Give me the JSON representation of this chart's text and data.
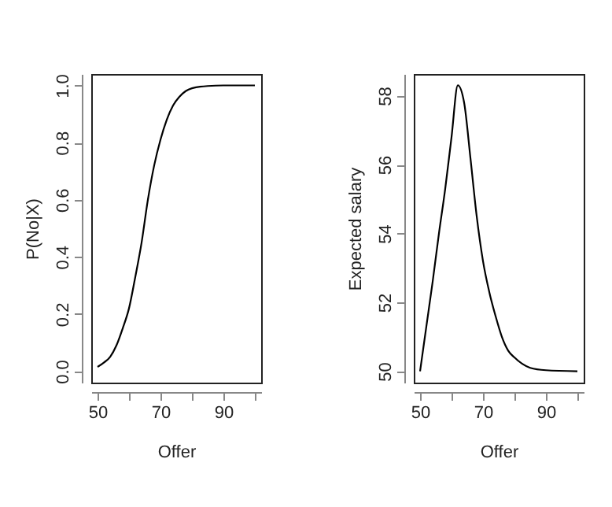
{
  "chart_data": [
    {
      "type": "line",
      "xlabel": "Offer",
      "ylabel": "P(No|X)",
      "x": [
        50,
        52,
        54,
        56,
        58,
        60,
        62,
        64,
        66,
        68,
        70,
        72,
        74,
        76,
        78,
        80,
        85,
        90,
        100
      ],
      "series": [
        {
          "color": "#000000",
          "values": [
            0.015,
            0.03,
            0.05,
            0.09,
            0.15,
            0.22,
            0.33,
            0.45,
            0.6,
            0.72,
            0.81,
            0.88,
            0.93,
            0.96,
            0.98,
            0.99,
            0.998,
            1.0,
            1.0
          ]
        }
      ],
      "xlim": [
        48,
        102
      ],
      "xticks": [
        50,
        {
          "value": 60,
          "label": null
        },
        70,
        {
          "value": 80,
          "label": null
        },
        90,
        {
          "value": 100,
          "label": null
        }
      ],
      "ylim": [
        -0.04,
        1.04
      ],
      "yticks": [
        {
          "value": 0,
          "label": "0.0"
        },
        0.2,
        0.4,
        0.6,
        0.8,
        {
          "value": 1,
          "label": "1.0"
        }
      ],
      "grid": false,
      "marker": "none",
      "line_style": "solid"
    },
    {
      "type": "line",
      "xlabel": "Offer",
      "ylabel": "Expected salary",
      "x": [
        50,
        52,
        54,
        56,
        58,
        60,
        62,
        64,
        66,
        68,
        70,
        72,
        74,
        76,
        78,
        80,
        85,
        90,
        100
      ],
      "series": [
        {
          "color": "#000000",
          "values": [
            50,
            51.3,
            52.6,
            54.0,
            55.3,
            56.8,
            58.3,
            57.8,
            56.2,
            54.5,
            53.2,
            52.3,
            51.6,
            51.0,
            50.6,
            50.4,
            50.1,
            50.03,
            50.0
          ]
        }
      ],
      "xlim": [
        48,
        102
      ],
      "xticks": [
        50,
        {
          "value": 60,
          "label": null
        },
        70,
        {
          "value": 80,
          "label": null
        },
        90,
        {
          "value": 100,
          "label": null
        }
      ],
      "ylim": [
        49.67,
        58.63
      ],
      "yticks": [
        50,
        52,
        54,
        56,
        58
      ],
      "grid": false,
      "marker": "none",
      "line_style": "solid"
    }
  ]
}
